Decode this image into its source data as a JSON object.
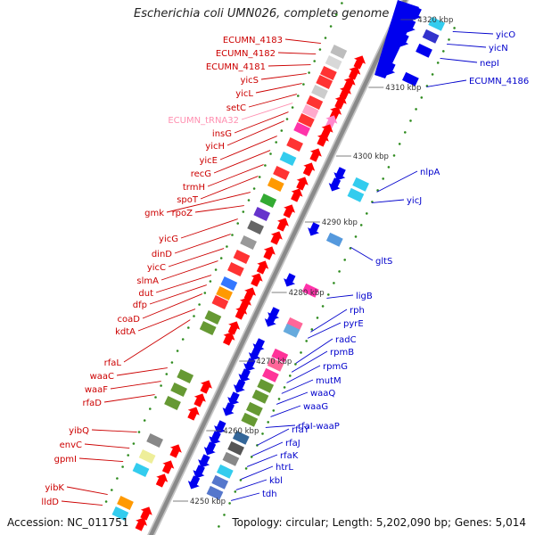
{
  "title": "Escherichia coli UMN026, complete genome",
  "footer": {
    "accession": "Accession: NC_011751",
    "stats": "Topology: circular; Length: 5,202,090 bp; Genes: 5,014"
  },
  "colors": {
    "backbone": "#8a8a8a",
    "minus_label": "#cc0000",
    "plus_label": "#0000cc",
    "trna_label": "#ff8fb0",
    "arrow_minus": "#ff0000",
    "arrow_plus": "#0000ee",
    "tick": "#2e8b1e"
  },
  "scale_labels": [
    "4320 kbp",
    "4310 kbp",
    "4300 kbp",
    "4290 kbp",
    "4280 kbp",
    "4270 kbp",
    "4260 kbp",
    "4250 kbp"
  ],
  "left_genes": [
    {
      "name": "ECUMN_4183",
      "type": "cds"
    },
    {
      "name": "ECUMN_4182",
      "type": "cds"
    },
    {
      "name": "ECUMN_4181",
      "type": "cds"
    },
    {
      "name": "yicS",
      "type": "cds"
    },
    {
      "name": "yicL",
      "type": "cds"
    },
    {
      "name": "setC",
      "type": "cds"
    },
    {
      "name": "ECUMN_tRNA32",
      "type": "trna"
    },
    {
      "name": "insG",
      "type": "cds"
    },
    {
      "name": "yicH",
      "type": "cds"
    },
    {
      "name": "yicE",
      "type": "cds"
    },
    {
      "name": "recG",
      "type": "cds"
    },
    {
      "name": "trmH",
      "type": "cds"
    },
    {
      "name": "spoT",
      "type": "cds"
    },
    {
      "name": "gmk",
      "type": "cds"
    },
    {
      "name": "rpoZ",
      "type": "cds"
    },
    {
      "name": "yicG",
      "type": "cds"
    },
    {
      "name": "dinD",
      "type": "cds"
    },
    {
      "name": "yicC",
      "type": "cds"
    },
    {
      "name": "slmA",
      "type": "cds"
    },
    {
      "name": "dut",
      "type": "cds"
    },
    {
      "name": "dfp",
      "type": "cds"
    },
    {
      "name": "coaD",
      "type": "cds"
    },
    {
      "name": "kdtA",
      "type": "cds"
    },
    {
      "name": "rfaL",
      "type": "cds"
    },
    {
      "name": "waaC",
      "type": "cds"
    },
    {
      "name": "waaF",
      "type": "cds"
    },
    {
      "name": "rfaD",
      "type": "cds"
    },
    {
      "name": "yibQ",
      "type": "cds"
    },
    {
      "name": "envC",
      "type": "cds"
    },
    {
      "name": "gpmI",
      "type": "cds"
    },
    {
      "name": "yibK",
      "type": "cds"
    },
    {
      "name": "lldD",
      "type": "cds"
    }
  ],
  "right_genes": [
    {
      "name": "yicO"
    },
    {
      "name": "yicN"
    },
    {
      "name": "nepI"
    },
    {
      "name": "ECUMN_4186"
    },
    {
      "name": "nlpA"
    },
    {
      "name": "yicJ"
    },
    {
      "name": "gltS"
    },
    {
      "name": "ligB"
    },
    {
      "name": "rph"
    },
    {
      "name": "pyrE"
    },
    {
      "name": "radC"
    },
    {
      "name": "rpmB"
    },
    {
      "name": "rpmG"
    },
    {
      "name": "mutM"
    },
    {
      "name": "waaQ"
    },
    {
      "name": "waaG"
    },
    {
      "name": "rfaI-waaP"
    },
    {
      "name": "rfaY"
    },
    {
      "name": "rfaJ"
    },
    {
      "name": "rfaK"
    },
    {
      "name": "htrL"
    },
    {
      "name": "kbl"
    },
    {
      "name": "tdh"
    }
  ]
}
